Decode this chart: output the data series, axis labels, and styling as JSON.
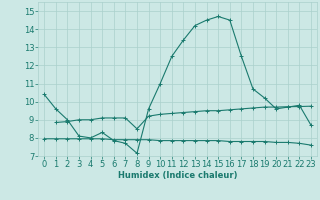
{
  "xlabel": "Humidex (Indice chaleur)",
  "background_color": "#cce8e5",
  "grid_color": "#aad0cc",
  "line_color": "#1a7a6e",
  "xlim": [
    -0.5,
    23.5
  ],
  "ylim": [
    7.0,
    15.5
  ],
  "yticks": [
    7,
    8,
    9,
    10,
    11,
    12,
    13,
    14,
    15
  ],
  "xticks": [
    0,
    1,
    2,
    3,
    4,
    5,
    6,
    7,
    8,
    9,
    10,
    11,
    12,
    13,
    14,
    15,
    16,
    17,
    18,
    19,
    20,
    21,
    22,
    23
  ],
  "series1_x": [
    0,
    1,
    2,
    3,
    4,
    5,
    6,
    7,
    8,
    9,
    10,
    11,
    12,
    13,
    14,
    15,
    16,
    17,
    18,
    19,
    20,
    21,
    22,
    23
  ],
  "series1_y": [
    10.4,
    9.6,
    9.0,
    8.1,
    8.0,
    8.3,
    7.85,
    7.7,
    7.15,
    9.6,
    11.0,
    12.5,
    13.4,
    14.2,
    14.5,
    14.7,
    14.5,
    12.5,
    10.7,
    10.2,
    9.6,
    9.7,
    9.8,
    8.7
  ],
  "series2_x": [
    1,
    2,
    3,
    4,
    5,
    6,
    7,
    8,
    9,
    10,
    11,
    12,
    13,
    14,
    15,
    16,
    17,
    18,
    19,
    20,
    21,
    22,
    23
  ],
  "series2_y": [
    8.85,
    8.9,
    9.0,
    9.0,
    9.1,
    9.1,
    9.1,
    8.5,
    9.2,
    9.3,
    9.35,
    9.4,
    9.45,
    9.5,
    9.5,
    9.55,
    9.6,
    9.65,
    9.7,
    9.7,
    9.72,
    9.73,
    9.75
  ],
  "series3_x": [
    0,
    1,
    2,
    3,
    4,
    5,
    6,
    7,
    8,
    9,
    10,
    11,
    12,
    13,
    14,
    15,
    16,
    17,
    18,
    19,
    20,
    21,
    22,
    23
  ],
  "series3_y": [
    7.95,
    7.95,
    7.95,
    7.95,
    7.95,
    7.95,
    7.9,
    7.9,
    7.9,
    7.9,
    7.85,
    7.85,
    7.85,
    7.85,
    7.85,
    7.85,
    7.8,
    7.8,
    7.8,
    7.8,
    7.75,
    7.75,
    7.7,
    7.6
  ],
  "xlabel_fontsize": 6,
  "tick_fontsize": 6
}
